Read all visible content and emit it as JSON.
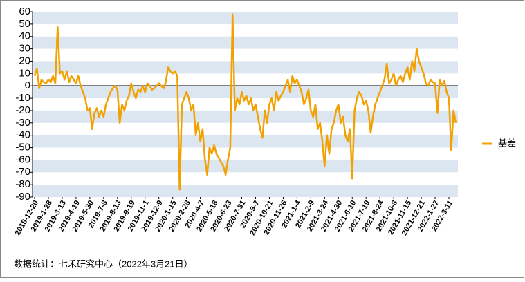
{
  "chart_data": {
    "type": "line",
    "categories": [
      "2018-12-20",
      null,
      null,
      null,
      null,
      null,
      "2019-1-28",
      null,
      null,
      null,
      null,
      null,
      "2019-3-13",
      null,
      null,
      null,
      null,
      null,
      "2019-4-19",
      null,
      null,
      null,
      null,
      null,
      "2019-5-30",
      null,
      null,
      null,
      null,
      null,
      "2019-7-8",
      null,
      null,
      null,
      null,
      null,
      "2019-8-13",
      null,
      null,
      null,
      null,
      null,
      "2019-9-19",
      null,
      null,
      null,
      null,
      null,
      "2019-11-1",
      null,
      null,
      null,
      null,
      null,
      "2019-12-9",
      null,
      null,
      null,
      null,
      null,
      "2020-1-15",
      null,
      null,
      null,
      null,
      null,
      "2020-2-28",
      null,
      null,
      null,
      null,
      null,
      "2020-4-7",
      null,
      null,
      null,
      null,
      null,
      "2020-5-18",
      null,
      null,
      null,
      null,
      null,
      "2020-6-23",
      null,
      null,
      null,
      null,
      null,
      "2020-7-31",
      null,
      null,
      null,
      null,
      null,
      "2020-9-7",
      null,
      null,
      null,
      null,
      null,
      "2020-10-21",
      null,
      null,
      null,
      null,
      null,
      "2020-11-26",
      null,
      null,
      null,
      null,
      null,
      "2021-1-4",
      null,
      null,
      null,
      null,
      null,
      "2021-2-9",
      null,
      null,
      null,
      null,
      null,
      "2021-3-24",
      null,
      null,
      null,
      null,
      null,
      "2021-4-30",
      null,
      null,
      null,
      null,
      null,
      "2021-6-10",
      null,
      null,
      null,
      null,
      null,
      "2021-7-19",
      null,
      null,
      null,
      null,
      null,
      "2021-8-24",
      null,
      null,
      null,
      null,
      null,
      "2021-10-8",
      null,
      null,
      null,
      null,
      null,
      "2021-11-15",
      null,
      null,
      null,
      null,
      null,
      "2021-12-21",
      null,
      null,
      null,
      null,
      null,
      "2022-1-27",
      null,
      null,
      null,
      null,
      null,
      "2022-3-11",
      null,
      null,
      null
    ],
    "series": [
      {
        "name": "基差",
        "color": "#f2a100",
        "values": [
          8,
          14,
          -2,
          5,
          3,
          2,
          5,
          3,
          8,
          2,
          48,
          10,
          12,
          5,
          12,
          3,
          8,
          5,
          2,
          8,
          0,
          -5,
          -10,
          -20,
          -18,
          -35,
          -22,
          -18,
          -25,
          -20,
          -25,
          -15,
          -10,
          -5,
          -2,
          0,
          -3,
          -30,
          -15,
          -20,
          -12,
          -8,
          2,
          -5,
          -10,
          -3,
          -5,
          0,
          -5,
          2,
          0,
          -3,
          -2,
          0,
          2,
          0,
          -2,
          3,
          15,
          12,
          10,
          12,
          8,
          -84,
          -15,
          -10,
          -5,
          -10,
          -20,
          -15,
          -40,
          -30,
          -45,
          -35,
          -60,
          -72,
          -50,
          -55,
          -48,
          -55,
          -58,
          -62,
          -65,
          -72,
          -60,
          -50,
          58,
          -20,
          -10,
          -15,
          -5,
          -12,
          -8,
          -15,
          -10,
          -20,
          -15,
          -25,
          -35,
          -42,
          -20,
          -30,
          -15,
          -10,
          -20,
          -5,
          -12,
          -8,
          -5,
          0,
          5,
          -5,
          8,
          2,
          5,
          0,
          -5,
          -15,
          -10,
          -3,
          -20,
          -25,
          -15,
          -35,
          -30,
          -45,
          -65,
          -40,
          -55,
          -35,
          -30,
          -20,
          -15,
          -30,
          -25,
          -40,
          -45,
          -35,
          -75,
          -20,
          -10,
          -5,
          -8,
          -15,
          -12,
          -20,
          -38,
          -25,
          -15,
          -10,
          -5,
          0,
          5,
          18,
          2,
          5,
          10,
          0,
          5,
          8,
          3,
          10,
          15,
          5,
          20,
          12,
          30,
          20,
          15,
          10,
          2,
          0,
          5,
          3,
          2,
          -22,
          5,
          0,
          4,
          -5,
          -10,
          -52,
          -20,
          -30
        ]
      }
    ],
    "ylim": [
      -90,
      60
    ],
    "yticks": [
      60,
      50,
      40,
      30,
      20,
      10,
      0,
      -10,
      -20,
      -30,
      -40,
      -50,
      -60,
      -70,
      -80,
      -90
    ],
    "grid": true,
    "legend": "right",
    "note": "数据统计：七禾研究中心（2022年3月21日）"
  }
}
